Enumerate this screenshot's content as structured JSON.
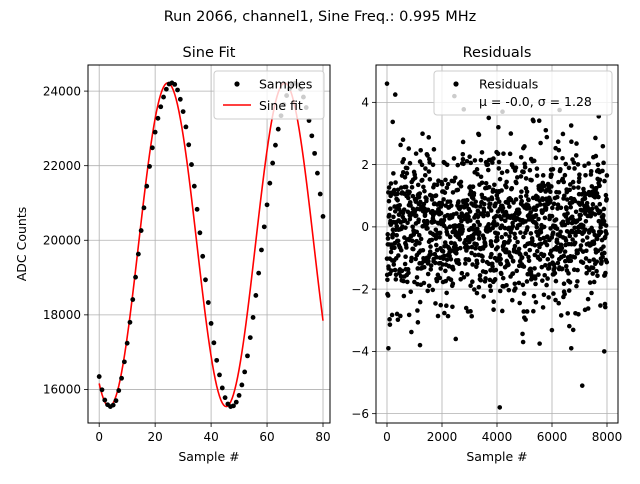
{
  "suptitle": "Run 2066, channel1, Sine Freq.: 0.995 MHz",
  "chart_data": [
    {
      "type": "line",
      "title": "Sine Fit",
      "xlabel": "Sample #",
      "ylabel": "ADC Counts",
      "xlim": [
        -4,
        82.5
      ],
      "ylim": [
        15100,
        24700
      ],
      "xticks": [
        0,
        20,
        40,
        60,
        80
      ],
      "xtick_labels": [
        "0",
        "20",
        "40",
        "60",
        "80"
      ],
      "yticks": [
        16000,
        18000,
        20000,
        22000,
        24000
      ],
      "ytick_labels": [
        "16000",
        "18000",
        "20000",
        "22000",
        "24000"
      ],
      "grid": true,
      "legend_position": "top-right",
      "legend": [
        "Samples",
        "Sine fit"
      ],
      "sine_model": {
        "offset": 19880,
        "amplitude": 4340,
        "period": 41.8,
        "peak_at": 24.5
      },
      "series": [
        {
          "name": "Samples",
          "kind": "markers",
          "color": "#000000",
          "x": [
            0,
            1,
            2,
            3,
            4,
            5,
            6,
            7,
            8,
            9,
            10,
            11,
            12,
            13,
            14,
            15,
            16,
            17,
            18,
            19,
            20,
            21,
            22,
            23,
            24,
            25,
            26,
            27,
            28,
            29,
            30,
            31,
            32,
            33,
            34,
            35,
            36,
            37,
            38,
            39,
            40,
            41,
            42,
            43,
            44,
            45,
            46,
            47,
            48,
            49,
            50,
            51,
            52,
            53,
            54,
            55,
            56,
            57,
            58,
            59,
            60,
            61,
            62,
            63,
            64,
            65,
            66,
            67,
            68,
            69,
            70,
            71,
            72,
            73,
            74,
            75,
            76,
            77,
            78,
            79,
            80
          ],
          "y": [
            16345,
            15990,
            15715,
            15590,
            15540,
            15580,
            15700,
            15970,
            16300,
            16740,
            17240,
            17800,
            18410,
            19010,
            19630,
            20260,
            20870,
            21450,
            21980,
            22480,
            22900,
            23270,
            23580,
            23840,
            24050,
            24190,
            24220,
            24180,
            24030,
            23780,
            23450,
            23040,
            22560,
            22030,
            21450,
            20830,
            20200,
            19570,
            18940,
            18330,
            17770,
            17250,
            16780,
            16390,
            16040,
            15780,
            15610,
            15540,
            15560,
            15660,
            15840,
            16120,
            16470,
            16900,
            17390,
            17930,
            18520,
            19120,
            19740,
            20360,
            20950,
            21530,
            22070,
            22550,
            22980,
            23340,
            23640,
            23880,
            24060,
            24170,
            24210,
            24170,
            24050,
            23840,
            23560,
            23210,
            22800,
            22330,
            21800,
            21240,
            20640
          ]
        },
        {
          "name": "Sine fit",
          "kind": "line",
          "color": "#ff0000"
        }
      ]
    },
    {
      "type": "scatter",
      "title": "Residuals",
      "xlabel": "Sample #",
      "ylabel": "",
      "xlim": [
        -400,
        8400
      ],
      "ylim": [
        -6.3,
        5.2
      ],
      "xticks": [
        0,
        2000,
        4000,
        6000,
        8000
      ],
      "xtick_labels": [
        "0",
        "2000",
        "4000",
        "6000",
        "8000"
      ],
      "yticks": [
        -6,
        -4,
        -2,
        0,
        2,
        4
      ],
      "ytick_labels": [
        "−6",
        "−4",
        "−2",
        "0",
        "2",
        "4"
      ],
      "grid": true,
      "legend_position": "top-right",
      "legend": [
        "Residuals",
        "μ = -0.0, σ = 1.28"
      ],
      "n_samples": 8000,
      "mean": 0.0,
      "sigma": 1.28,
      "series": [
        {
          "name": "Residuals",
          "kind": "markers",
          "color": "#000000",
          "outliers": [
            {
              "x": 0,
              "y": 4.6
            },
            {
              "x": 300,
              "y": 4.25
            },
            {
              "x": 2450,
              "y": 4.2
            },
            {
              "x": 4100,
              "y": -5.8
            },
            {
              "x": 7100,
              "y": -5.1
            },
            {
              "x": 50,
              "y": -3.9
            },
            {
              "x": 7900,
              "y": -4.0
            },
            {
              "x": 6700,
              "y": -3.9
            },
            {
              "x": 4950,
              "y": -3.7
            },
            {
              "x": 5550,
              "y": -3.75
            },
            {
              "x": 1200,
              "y": -3.8
            },
            {
              "x": 4200,
              "y": 3.7
            },
            {
              "x": 7700,
              "y": 3.55
            },
            {
              "x": 2500,
              "y": -3.6
            },
            {
              "x": 3700,
              "y": 3.5
            }
          ]
        }
      ]
    }
  ]
}
